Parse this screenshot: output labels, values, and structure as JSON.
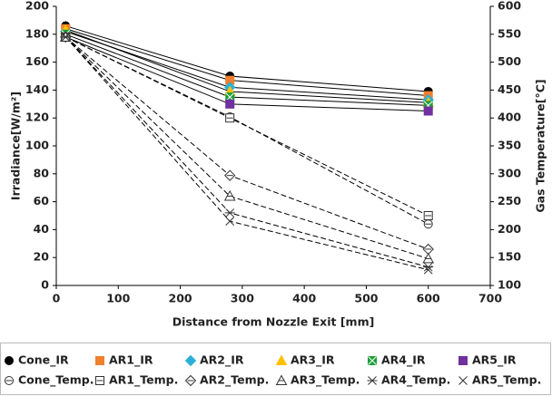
{
  "chart_data": {
    "type": "line",
    "x_label": "Distance from Nozzle Exit [mm]",
    "y_label": "Irradiance[W/m²]",
    "y2_label": "Gas Temperature[°C]",
    "x": [
      15,
      280,
      600
    ],
    "xlim": [
      0,
      700
    ],
    "xticks": [
      0,
      100,
      200,
      300,
      400,
      500,
      600,
      700
    ],
    "ylim": [
      0,
      200
    ],
    "yticks": [
      0,
      20,
      40,
      60,
      80,
      100,
      120,
      140,
      160,
      180,
      200
    ],
    "y2lim": [
      100,
      600
    ],
    "y2ticks": [
      100,
      150,
      200,
      250,
      300,
      350,
      400,
      450,
      500,
      550,
      600
    ],
    "grid": false,
    "legend": "bottom",
    "series": [
      {
        "name": "Cone_IR",
        "color": "#000000",
        "marker": "circle",
        "line_style": "solid",
        "values": [
          186,
          150,
          139
        ]
      },
      {
        "name": "AR1_IR",
        "color": "#f07f2e",
        "marker": "square",
        "line_style": "solid",
        "values": [
          184,
          147,
          136
        ]
      },
      {
        "name": "AR2_IR",
        "color": "#2ab0d8",
        "marker": "diamond",
        "line_style": "solid",
        "values": [
          182,
          142,
          133
        ]
      },
      {
        "name": "AR3_IR",
        "color": "#ffc000",
        "marker": "triangle",
        "line_style": "solid",
        "values": [
          183,
          139,
          131
        ]
      },
      {
        "name": "AR4_IR",
        "color": "#1e9e3a",
        "marker": "xbox",
        "line_style": "solid",
        "values": [
          180,
          135,
          129
        ]
      },
      {
        "name": "AR5_IR",
        "color": "#7030a0",
        "marker": "square",
        "line_style": "solid",
        "values": [
          178,
          130,
          125
        ]
      },
      {
        "name": "Cone_Temp.",
        "color": "#ffffff",
        "marker": "circle-bar",
        "line_style": "dashed",
        "axis": "y2",
        "values": [
          545,
          402,
          210
        ]
      },
      {
        "name": "AR1_Temp.",
        "color": "#ffffff",
        "marker": "square-bar",
        "line_style": "dashed",
        "axis": "y2",
        "values": [
          545,
          400,
          225
        ]
      },
      {
        "name": "AR2_Temp.",
        "color": "#ffffff",
        "marker": "diamond-bar",
        "line_style": "dashed",
        "axis": "y2",
        "values": [
          545,
          297,
          165
        ]
      },
      {
        "name": "AR3_Temp.",
        "color": "#ffffff",
        "marker": "triangle-bar",
        "line_style": "dashed",
        "axis": "y2",
        "values": [
          545,
          260,
          148
        ]
      },
      {
        "name": "AR4_Temp.",
        "color": "#ffffff",
        "marker": "asterisk",
        "line_style": "dashed",
        "axis": "y2",
        "values": [
          545,
          230,
          133
        ]
      },
      {
        "name": "AR5_Temp.",
        "color": "#ffffff",
        "marker": "cross",
        "line_style": "dashed",
        "axis": "y2",
        "values": [
          545,
          215,
          128
        ]
      }
    ]
  }
}
